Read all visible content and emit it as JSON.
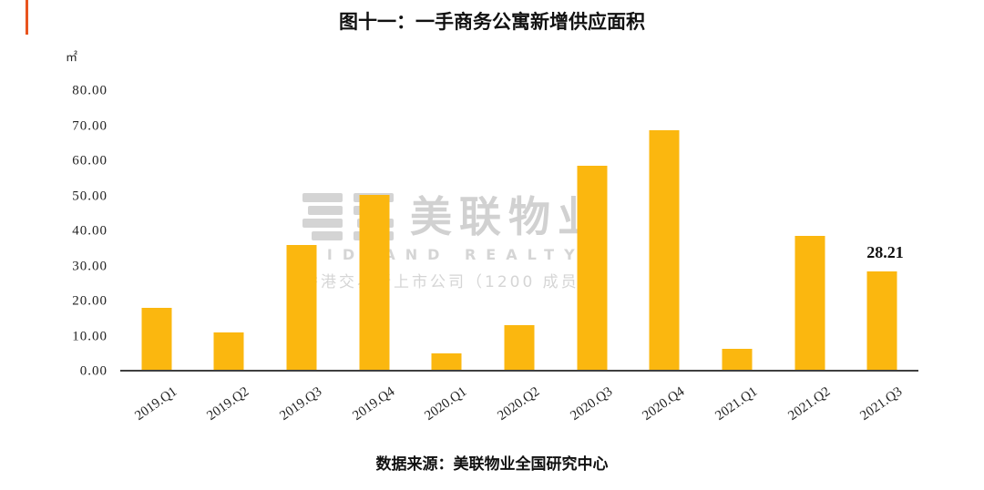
{
  "page": {
    "title": "图十一：一手商务公寓新增供应面积",
    "unit": "㎡",
    "source": "数据来源：美联物业全国研究中心"
  },
  "watermark": {
    "cn": "美联物业",
    "en": "MIDLAND REALTY",
    "sub": "香港交易所上市公司（1200 成员）"
  },
  "chart_data": {
    "type": "bar",
    "title": "图十一：一手商务公寓新增供应面积",
    "xlabel": "",
    "ylabel": "㎡",
    "categories": [
      "2019.Q1",
      "2019.Q2",
      "2019.Q3",
      "2019.Q4",
      "2020.Q1",
      "2020.Q2",
      "2020.Q3",
      "2020.Q4",
      "2021.Q1",
      "2021.Q2",
      "2021.Q3"
    ],
    "values": [
      17.8,
      10.6,
      35.8,
      50.2,
      4.7,
      12.9,
      58.5,
      68.8,
      6.1,
      38.5,
      28.21
    ],
    "ylim": [
      0,
      80
    ],
    "ytick_step": 10,
    "yticks": [
      "80.00",
      "70.00",
      "60.00",
      "50.00",
      "40.00",
      "30.00",
      "20.00",
      "10.00",
      "0.00"
    ],
    "bar_color": "#fbb70f",
    "grid": false,
    "legend": false,
    "label_index": 10,
    "label_text": "28.21"
  }
}
